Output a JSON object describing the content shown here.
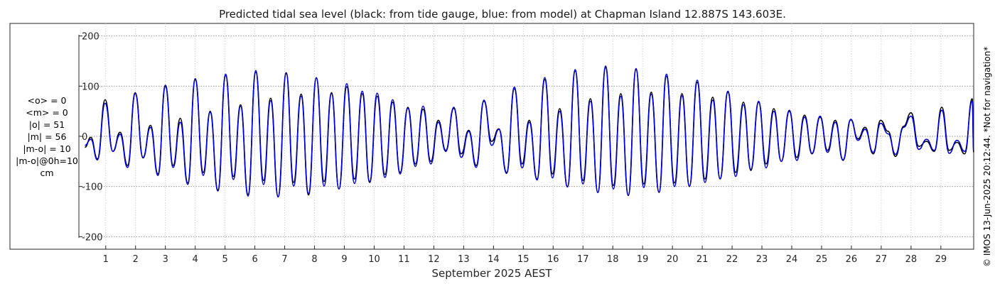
{
  "chart_data": {
    "type": "line",
    "title": "Predicted tidal sea level (black: from tide gauge, blue: from model) at Chapman Island 12.887S 143.603E.",
    "xlabel": "September 2025 AEST",
    "ylabel": "",
    "x_unit": "day of September 2025",
    "xlim": [
      0.1,
      30.1
    ],
    "ylim": [
      -225,
      225
    ],
    "yticks": [
      -200,
      -100,
      0,
      100,
      200
    ],
    "ytick_labels": [
      "-200",
      "-100",
      "0",
      "100",
      "200"
    ],
    "xticks": [
      1,
      2,
      3,
      4,
      5,
      6,
      7,
      8,
      9,
      10,
      11,
      12,
      13,
      14,
      15,
      16,
      17,
      18,
      19,
      20,
      21,
      22,
      23,
      24,
      25,
      26,
      27,
      28,
      29
    ],
    "xtick_labels": [
      "1",
      "2",
      "3",
      "4",
      "5",
      "6",
      "7",
      "8",
      "9",
      "10",
      "11",
      "12",
      "13",
      "14",
      "15",
      "16",
      "17",
      "18",
      "19",
      "20",
      "21",
      "22",
      "23",
      "24",
      "25",
      "26",
      "27",
      "28",
      "29"
    ],
    "grid": true,
    "units": "cm",
    "stats": [
      "<o> = 0",
      "<m> = 0",
      "|o| = 51",
      "|m| = 56",
      "|m-o| = 10",
      "|m-o|@0h=10",
      "cm"
    ],
    "series": [
      {
        "color": "#000000",
        "values": [
          [
            0.3,
            -22
          ],
          [
            0.5,
            -2
          ],
          [
            0.72,
            -45
          ],
          [
            0.98,
            73
          ],
          [
            1.24,
            -30
          ],
          [
            1.48,
            8
          ],
          [
            1.73,
            -58
          ],
          [
            1.99,
            87
          ],
          [
            2.25,
            -43
          ],
          [
            2.5,
            22
          ],
          [
            2.75,
            -75
          ],
          [
            3.0,
            99
          ],
          [
            3.26,
            -58
          ],
          [
            3.5,
            36
          ],
          [
            3.75,
            -93
          ],
          [
            4.0,
            113
          ],
          [
            4.27,
            -72
          ],
          [
            4.5,
            50
          ],
          [
            4.76,
            -107
          ],
          [
            5.02,
            121
          ],
          [
            5.28,
            -80
          ],
          [
            5.52,
            63
          ],
          [
            5.77,
            -116
          ],
          [
            6.03,
            128
          ],
          [
            6.29,
            -88
          ],
          [
            6.53,
            76
          ],
          [
            6.78,
            -120
          ],
          [
            7.05,
            127
          ],
          [
            7.3,
            -92
          ],
          [
            7.55,
            84
          ],
          [
            7.8,
            -117
          ],
          [
            8.06,
            116
          ],
          [
            8.32,
            -90
          ],
          [
            8.57,
            87
          ],
          [
            8.82,
            -105
          ],
          [
            9.08,
            99
          ],
          [
            9.34,
            -85
          ],
          [
            9.6,
            85
          ],
          [
            9.85,
            -92
          ],
          [
            10.1,
            80
          ],
          [
            10.36,
            -76
          ],
          [
            10.62,
            68
          ],
          [
            10.87,
            -72
          ],
          [
            11.13,
            58
          ],
          [
            11.38,
            -55
          ],
          [
            11.64,
            54
          ],
          [
            11.9,
            -50
          ],
          [
            12.15,
            32
          ],
          [
            12.4,
            -28
          ],
          [
            12.67,
            56
          ],
          [
            12.92,
            -35
          ],
          [
            13.17,
            12
          ],
          [
            13.42,
            -58
          ],
          [
            13.68,
            70
          ],
          [
            13.94,
            -10
          ],
          [
            14.18,
            15
          ],
          [
            14.44,
            -72
          ],
          [
            14.7,
            95
          ],
          [
            14.96,
            -55
          ],
          [
            15.2,
            32
          ],
          [
            15.46,
            -85
          ],
          [
            15.72,
            113
          ],
          [
            15.98,
            -75
          ],
          [
            16.22,
            55
          ],
          [
            16.48,
            -100
          ],
          [
            16.74,
            130
          ],
          [
            17.0,
            -88
          ],
          [
            17.25,
            75
          ],
          [
            17.5,
            -112
          ],
          [
            17.76,
            137
          ],
          [
            18.02,
            -98
          ],
          [
            18.27,
            85
          ],
          [
            18.52,
            -118
          ],
          [
            18.78,
            133
          ],
          [
            19.04,
            -95
          ],
          [
            19.29,
            88
          ],
          [
            19.55,
            -112
          ],
          [
            19.8,
            120
          ],
          [
            20.07,
            -93
          ],
          [
            20.32,
            85
          ],
          [
            20.57,
            -100
          ],
          [
            20.83,
            108
          ],
          [
            21.09,
            -85
          ],
          [
            21.35,
            78
          ],
          [
            21.6,
            -85
          ],
          [
            21.86,
            88
          ],
          [
            22.12,
            -72
          ],
          [
            22.38,
            68
          ],
          [
            22.63,
            -68
          ],
          [
            22.89,
            68
          ],
          [
            23.14,
            -55
          ],
          [
            23.4,
            55
          ],
          [
            23.65,
            -50
          ],
          [
            23.92,
            50
          ],
          [
            24.17,
            -42
          ],
          [
            24.43,
            42
          ],
          [
            24.68,
            -35
          ],
          [
            24.95,
            38
          ],
          [
            25.2,
            -28
          ],
          [
            25.46,
            32
          ],
          [
            25.72,
            -48
          ],
          [
            25.98,
            33
          ],
          [
            26.22,
            -5
          ],
          [
            26.46,
            18
          ],
          [
            26.73,
            -35
          ],
          [
            26.98,
            32
          ],
          [
            27.23,
            10
          ],
          [
            27.48,
            -40
          ],
          [
            27.75,
            20
          ],
          [
            28.0,
            47
          ],
          [
            28.26,
            -20
          ],
          [
            28.52,
            -10
          ],
          [
            28.78,
            -30
          ],
          [
            29.03,
            58
          ],
          [
            29.28,
            -28
          ],
          [
            29.54,
            -12
          ],
          [
            29.8,
            -35
          ],
          [
            30.05,
            75
          ],
          [
            30.1,
            -32
          ]
        ]
      },
      {
        "color": "#0000e0",
        "values": [
          [
            0.3,
            -18
          ],
          [
            0.5,
            -6
          ],
          [
            0.72,
            -47
          ],
          [
            0.98,
            66
          ],
          [
            1.24,
            -30
          ],
          [
            1.48,
            4
          ],
          [
            1.73,
            -62
          ],
          [
            1.99,
            85
          ],
          [
            2.25,
            -42
          ],
          [
            2.5,
            18
          ],
          [
            2.75,
            -78
          ],
          [
            3.0,
            102
          ],
          [
            3.26,
            -62
          ],
          [
            3.5,
            28
          ],
          [
            3.75,
            -96
          ],
          [
            4.0,
            115
          ],
          [
            4.27,
            -78
          ],
          [
            4.5,
            48
          ],
          [
            4.76,
            -109
          ],
          [
            5.02,
            124
          ],
          [
            5.28,
            -86
          ],
          [
            5.52,
            60
          ],
          [
            5.77,
            -119
          ],
          [
            6.03,
            131
          ],
          [
            6.29,
            -96
          ],
          [
            6.53,
            71
          ],
          [
            6.78,
            -121
          ],
          [
            7.05,
            125
          ],
          [
            7.3,
            -99
          ],
          [
            7.55,
            80
          ],
          [
            7.8,
            -114
          ],
          [
            8.06,
            117
          ],
          [
            8.32,
            -99
          ],
          [
            8.57,
            85
          ],
          [
            8.82,
            -105
          ],
          [
            9.08,
            105
          ],
          [
            9.34,
            -94
          ],
          [
            9.6,
            90
          ],
          [
            9.85,
            -90
          ],
          [
            10.1,
            86
          ],
          [
            10.36,
            -82
          ],
          [
            10.62,
            73
          ],
          [
            10.87,
            -75
          ],
          [
            11.13,
            56
          ],
          [
            11.38,
            -60
          ],
          [
            11.64,
            60
          ],
          [
            11.9,
            -55
          ],
          [
            12.15,
            28
          ],
          [
            12.4,
            -30
          ],
          [
            12.67,
            58
          ],
          [
            12.92,
            -42
          ],
          [
            13.17,
            10
          ],
          [
            13.42,
            -62
          ],
          [
            13.68,
            72
          ],
          [
            13.94,
            -18
          ],
          [
            14.18,
            14
          ],
          [
            14.44,
            -74
          ],
          [
            14.7,
            98
          ],
          [
            14.96,
            -63
          ],
          [
            15.2,
            28
          ],
          [
            15.46,
            -87
          ],
          [
            15.72,
            117
          ],
          [
            15.98,
            -83
          ],
          [
            16.22,
            50
          ],
          [
            16.48,
            -101
          ],
          [
            16.74,
            133
          ],
          [
            17.0,
            -95
          ],
          [
            17.25,
            70
          ],
          [
            17.5,
            -112
          ],
          [
            17.76,
            140
          ],
          [
            18.02,
            -105
          ],
          [
            18.27,
            80
          ],
          [
            18.52,
            -117
          ],
          [
            18.78,
            135
          ],
          [
            19.04,
            -102
          ],
          [
            19.29,
            84
          ],
          [
            19.55,
            -111
          ],
          [
            19.8,
            124
          ],
          [
            20.07,
            -100
          ],
          [
            20.32,
            81
          ],
          [
            20.57,
            -99
          ],
          [
            20.83,
            112
          ],
          [
            21.09,
            -92
          ],
          [
            21.35,
            72
          ],
          [
            21.6,
            -84
          ],
          [
            21.86,
            90
          ],
          [
            22.12,
            -80
          ],
          [
            22.38,
            63
          ],
          [
            22.63,
            -66
          ],
          [
            22.89,
            70
          ],
          [
            23.14,
            -63
          ],
          [
            23.4,
            50
          ],
          [
            23.65,
            -50
          ],
          [
            23.92,
            52
          ],
          [
            24.17,
            -48
          ],
          [
            24.43,
            38
          ],
          [
            24.68,
            -34
          ],
          [
            24.95,
            40
          ],
          [
            25.2,
            -32
          ],
          [
            25.46,
            28
          ],
          [
            25.72,
            -47
          ],
          [
            25.98,
            34
          ],
          [
            26.22,
            -8
          ],
          [
            26.46,
            14
          ],
          [
            26.73,
            -32
          ],
          [
            26.98,
            26
          ],
          [
            27.23,
            5
          ],
          [
            27.48,
            -36
          ],
          [
            27.75,
            18
          ],
          [
            28.0,
            40
          ],
          [
            28.26,
            -26
          ],
          [
            28.52,
            -6
          ],
          [
            28.78,
            -28
          ],
          [
            29.03,
            52
          ],
          [
            29.28,
            -34
          ],
          [
            29.54,
            -8
          ],
          [
            29.8,
            -30
          ],
          [
            30.05,
            70
          ],
          [
            30.1,
            -28
          ]
        ]
      }
    ]
  },
  "side_note": "© IMOS 13-Jun-2025 20:12:44. *Not for navigation*"
}
